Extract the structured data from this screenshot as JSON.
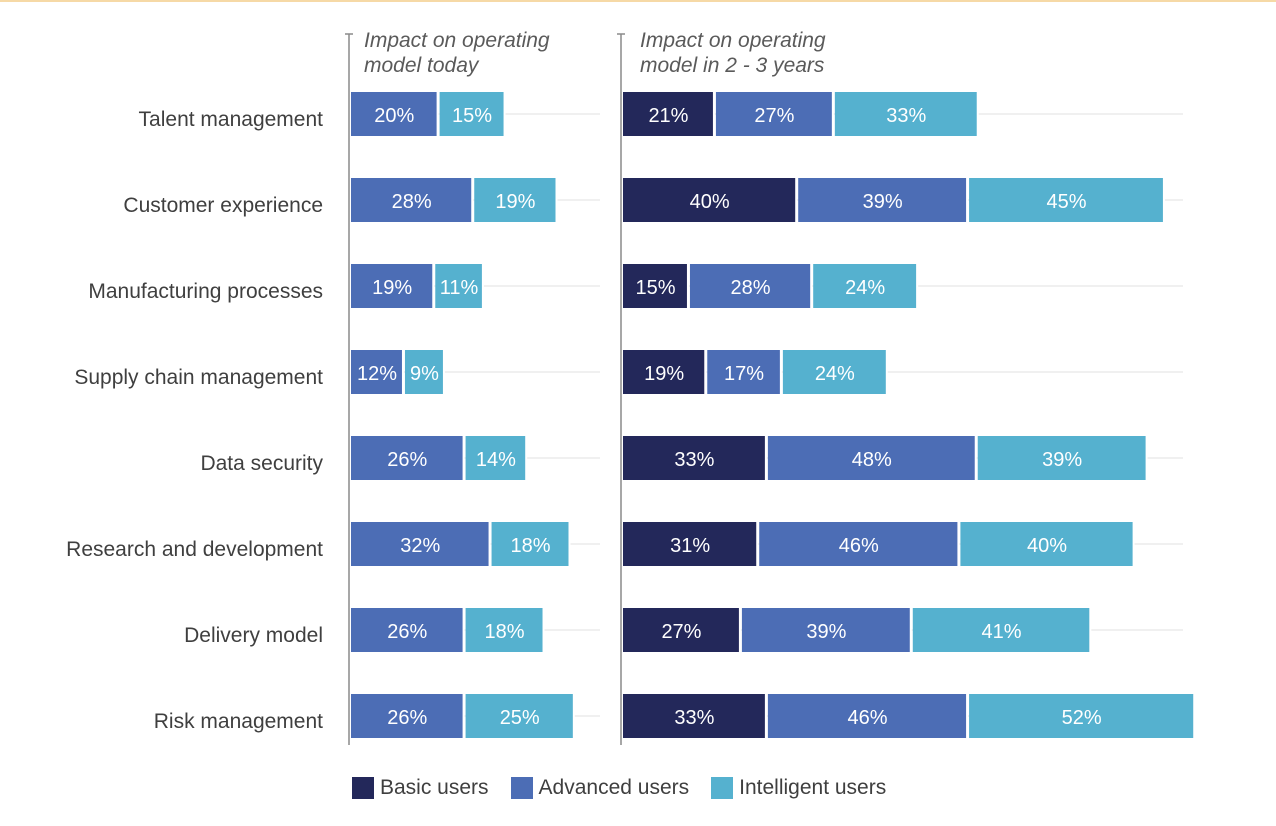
{
  "chart_data": {
    "type": "bar",
    "orientation": "horizontal",
    "stacked": true,
    "categories": [
      "Talent management",
      "Customer experience",
      "Manufacturing processes",
      "Supply chain management",
      "Data security",
      "Research and development",
      "Delivery model",
      "Risk management"
    ],
    "panels": [
      {
        "title_line1": "Impact on operating",
        "title_line2": "model today",
        "series": [
          {
            "name": "Advanced users",
            "color": "#4c6db5",
            "values": [
              20,
              28,
              19,
              12,
              26,
              32,
              26,
              26
            ],
            "labels": [
              "20%",
              "28%",
              "19%",
              "12%",
              "26%",
              "32%",
              "26%",
              "26%"
            ]
          },
          {
            "name": "Intelligent users",
            "color": "#55b1cf",
            "values": [
              15,
              19,
              11,
              9,
              14,
              18,
              18,
              25
            ],
            "labels": [
              "15%",
              "19%",
              "11%",
              "9%",
              "14%",
              "18%",
              "18%",
              "25%"
            ]
          }
        ]
      },
      {
        "title_line1": "Impact on operating",
        "title_line2": "model in 2 - 3 years",
        "series": [
          {
            "name": "Basic users",
            "color": "#23285a",
            "values": [
              21,
              40,
              15,
              19,
              33,
              31,
              27,
              33
            ],
            "labels": [
              "21%",
              "40%",
              "15%",
              "19%",
              "33%",
              "31%",
              "27%",
              "33%"
            ]
          },
          {
            "name": "Advanced users",
            "color": "#4c6db5",
            "values": [
              27,
              39,
              28,
              17,
              48,
              46,
              39,
              46
            ],
            "labels": [
              "27%",
              "39%",
              "28%",
              "17%",
              "48%",
              "46%",
              "39%",
              "46%"
            ]
          },
          {
            "name": "Intelligent users",
            "color": "#55b1cf",
            "values": [
              33,
              45,
              24,
              24,
              39,
              40,
              41,
              52
            ],
            "labels": [
              "33%",
              "45%",
              "24%",
              "24%",
              "39%",
              "40%",
              "41%",
              "52%"
            ]
          }
        ]
      }
    ],
    "legend": {
      "position": "bottom",
      "items": [
        {
          "name": "Basic users",
          "color": "#23285a"
        },
        {
          "name": "Advanced users",
          "color": "#4c6db5"
        },
        {
          "name": "Intelligent users",
          "color": "#55b1cf"
        }
      ]
    },
    "grid": true
  }
}
